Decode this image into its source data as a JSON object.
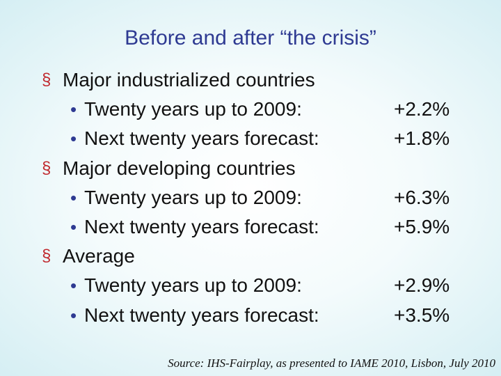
{
  "title": "Before and after “the crisis”",
  "groups": [
    {
      "label": "Major industrialized countries",
      "items": [
        {
          "label": "Twenty years up to 2009:",
          "value": "+2.2%"
        },
        {
          "label": "Next twenty years forecast:",
          "value": "+1.8%"
        }
      ]
    },
    {
      "label": "Major developing countries",
      "items": [
        {
          "label": "Twenty years up to 2009:",
          "value": "+6.3%"
        },
        {
          "label": "Next twenty years forecast:",
          "value": "+5.9%"
        }
      ]
    },
    {
      "label": "Average",
      "items": [
        {
          "label": "Twenty years up to 2009:",
          "value": "+2.9%"
        },
        {
          "label": "Next twenty years forecast:",
          "value": "+3.5%"
        }
      ]
    }
  ],
  "source": "Source: IHS-Fairplay, as presented to IAME 2010, Lisbon, July 2010"
}
